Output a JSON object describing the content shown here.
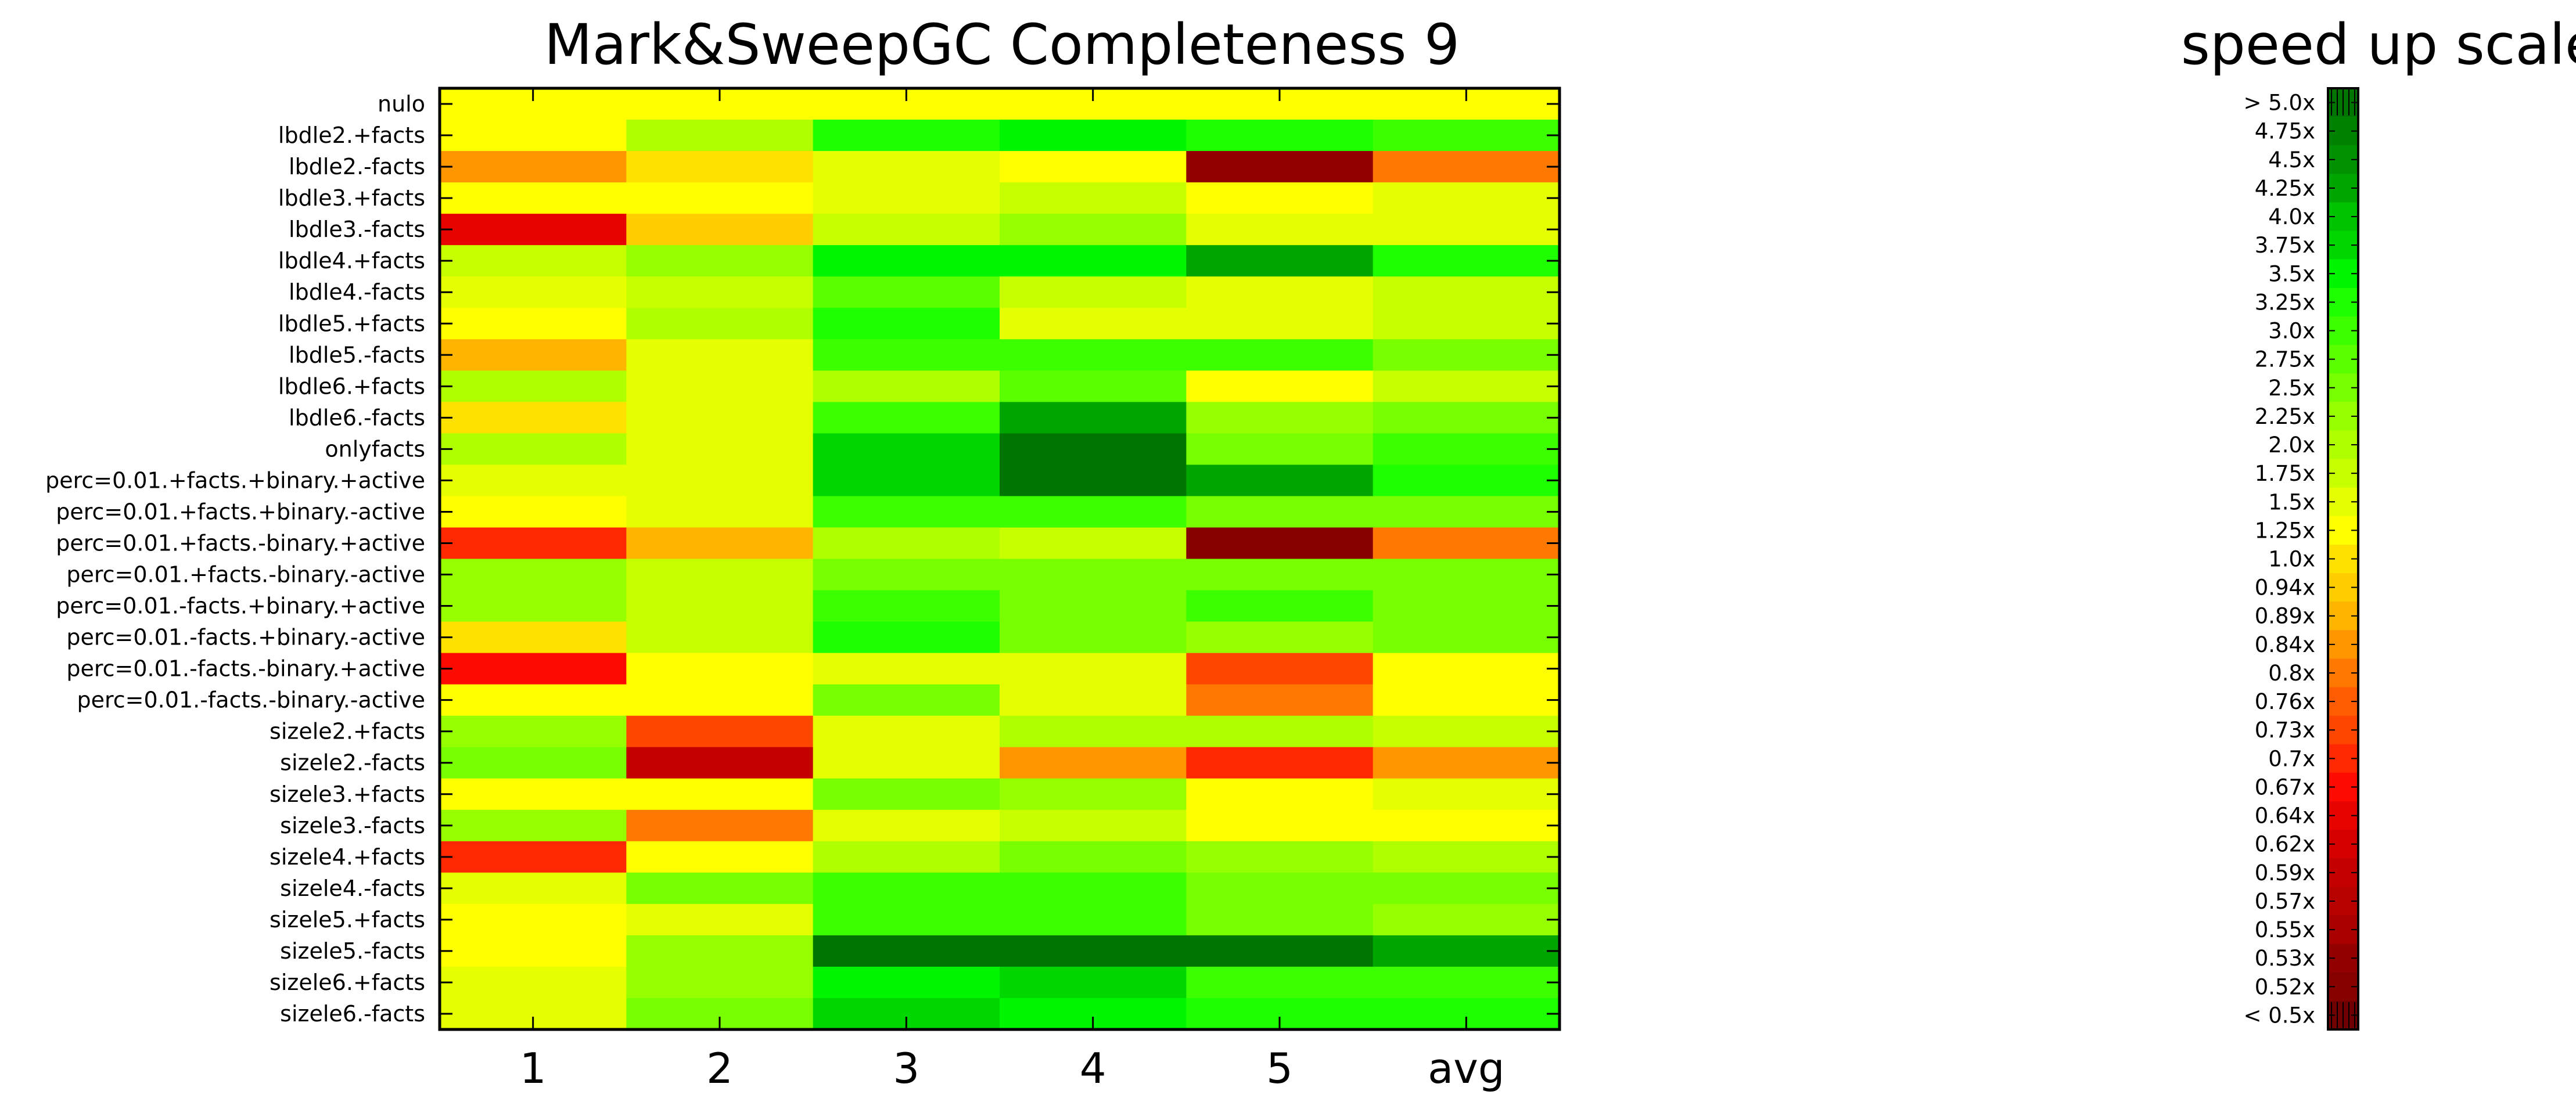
{
  "chart_data": [
    {
      "type": "heatmap",
      "title": "Mark&SweepGC Completeness 9",
      "xlabel": "",
      "ylabel": "",
      "x_categories": [
        "1",
        "2",
        "3",
        "4",
        "5",
        "avg"
      ],
      "y_categories": [
        "nulo",
        "lbdle2.+facts",
        "lbdle2.-facts",
        "lbdle3.+facts",
        "lbdle3.-facts",
        "lbdle4.+facts",
        "lbdle4.-facts",
        "lbdle5.+facts",
        "lbdle5.-facts",
        "lbdle6.+facts",
        "lbdle6.-facts",
        "onlyfacts",
        "perc=0.01.+facts.+binary.+active",
        "perc=0.01.+facts.+binary.-active",
        "perc=0.01.+facts.-binary.+active",
        "perc=0.01.+facts.-binary.-active",
        "perc=0.01.-facts.+binary.+active",
        "perc=0.01.-facts.+binary.-active",
        "perc=0.01.-facts.-binary.+active",
        "perc=0.01.-facts.-binary.-active",
        "sizele2.+facts",
        "sizele2.-facts",
        "sizele3.+facts",
        "sizele3.-facts",
        "sizele4.+facts",
        "sizele4.-facts",
        "sizele5.+facts",
        "sizele5.-facts",
        "sizele6.+facts",
        "sizele6.-facts"
      ],
      "value_unit": "speed up (x)",
      "values": [
        [
          1.25,
          1.25,
          1.25,
          1.25,
          1.25,
          1.25
        ],
        [
          1.25,
          2.0,
          3.25,
          3.5,
          3.25,
          3.0
        ],
        [
          0.84,
          1.0,
          1.5,
          1.25,
          0.53,
          0.8
        ],
        [
          1.25,
          1.25,
          1.5,
          1.75,
          1.25,
          1.5
        ],
        [
          0.64,
          0.94,
          1.75,
          2.25,
          1.5,
          1.5
        ],
        [
          1.75,
          2.25,
          3.5,
          3.5,
          4.25,
          3.25
        ],
        [
          1.5,
          1.75,
          2.75,
          1.75,
          1.5,
          1.75
        ],
        [
          1.25,
          2.0,
          3.25,
          1.5,
          1.5,
          1.75
        ],
        [
          0.89,
          1.5,
          3.0,
          3.0,
          3.0,
          2.5
        ],
        [
          2.0,
          1.5,
          2.0,
          2.75,
          1.25,
          1.75
        ],
        [
          1.0,
          1.5,
          3.0,
          4.25,
          2.25,
          2.5
        ],
        [
          2.0,
          1.5,
          3.75,
          5.0,
          2.5,
          3.0
        ],
        [
          1.5,
          1.5,
          3.75,
          5.0,
          4.25,
          3.25
        ],
        [
          1.25,
          1.5,
          3.0,
          3.0,
          2.5,
          2.5
        ],
        [
          0.7,
          0.89,
          2.0,
          1.75,
          0.52,
          0.8
        ],
        [
          2.25,
          1.75,
          2.5,
          2.5,
          2.5,
          2.5
        ],
        [
          2.25,
          1.75,
          3.0,
          2.5,
          3.0,
          2.5
        ],
        [
          1.0,
          1.75,
          3.25,
          2.5,
          2.25,
          2.5
        ],
        [
          0.67,
          1.25,
          1.5,
          1.5,
          0.73,
          1.25
        ],
        [
          1.25,
          1.25,
          2.5,
          1.5,
          0.8,
          1.25
        ],
        [
          2.25,
          0.73,
          1.5,
          2.0,
          2.0,
          1.75
        ],
        [
          2.5,
          0.59,
          1.5,
          0.84,
          0.7,
          0.84
        ],
        [
          1.25,
          1.25,
          2.5,
          2.25,
          1.25,
          1.5
        ],
        [
          2.25,
          0.8,
          1.5,
          1.75,
          1.25,
          1.25
        ],
        [
          0.7,
          1.25,
          2.0,
          2.5,
          2.25,
          2.0
        ],
        [
          1.5,
          2.5,
          3.0,
          3.0,
          2.5,
          2.5
        ],
        [
          1.25,
          1.5,
          3.0,
          3.0,
          2.5,
          2.25
        ],
        [
          1.25,
          2.25,
          5.0,
          5.0,
          5.0,
          4.25
        ],
        [
          1.5,
          2.25,
          3.5,
          3.75,
          3.0,
          3.0
        ],
        [
          1.5,
          2.5,
          3.75,
          3.5,
          3.25,
          3.25
        ]
      ]
    },
    {
      "type": "colorbar",
      "title": "speed up scale",
      "labels_top_to_bottom": [
        "> 5.0x",
        "4.75x",
        "4.5x",
        "4.25x",
        "4.0x",
        "3.75x",
        "3.5x",
        "3.25x",
        "3.0x",
        "2.75x",
        "2.5x",
        "2.25x",
        "2.0x",
        "1.75x",
        "1.5x",
        "1.25x",
        "1.0x",
        "0.94x",
        "0.89x",
        "0.84x",
        "0.8x",
        "0.76x",
        "0.73x",
        "0.7x",
        "0.67x",
        "0.64x",
        "0.62x",
        "0.59x",
        "0.57x",
        "0.55x",
        "0.53x",
        "0.52x",
        "< 0.5x"
      ]
    }
  ],
  "colors": {
    "frame": "#000000",
    "background": "#ffffff"
  }
}
